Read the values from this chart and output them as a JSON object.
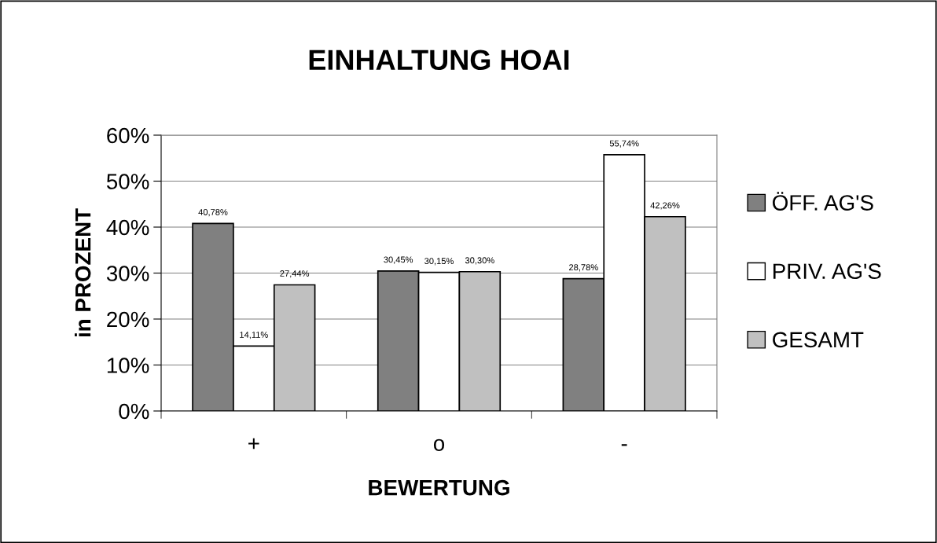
{
  "chart_data": {
    "type": "bar",
    "title": "EINHALTUNG HOAI",
    "xlabel": "BEWERTUNG",
    "ylabel": "in PROZENT",
    "categories": [
      "+",
      "o",
      "-"
    ],
    "series": [
      {
        "name": "ÖFF. AG'S",
        "color": "#808080",
        "values": [
          40.78,
          30.45,
          28.78
        ],
        "value_labels": [
          "40,78%",
          "30,45%",
          "28,78%"
        ]
      },
      {
        "name": "PRIV. AG'S",
        "color": "#ffffff",
        "values": [
          14.11,
          30.15,
          55.74
        ],
        "value_labels": [
          "14,11%",
          "30,15%",
          "55,74%"
        ]
      },
      {
        "name": "GESAMT",
        "color": "#c0c0c0",
        "values": [
          27.44,
          30.3,
          42.26
        ],
        "value_labels": [
          "27,44%",
          "30,30%",
          "42,26%"
        ]
      }
    ],
    "ylim": [
      0,
      60
    ],
    "yticks": [
      {
        "value": 0,
        "label": "0%"
      },
      {
        "value": 10,
        "label": "10%"
      },
      {
        "value": 20,
        "label": "20%"
      },
      {
        "value": 30,
        "label": "30%"
      },
      {
        "value": 40,
        "label": "40%"
      },
      {
        "value": 50,
        "label": "50%"
      },
      {
        "value": 60,
        "label": "60%"
      }
    ],
    "grid": "y",
    "legend": "right"
  }
}
